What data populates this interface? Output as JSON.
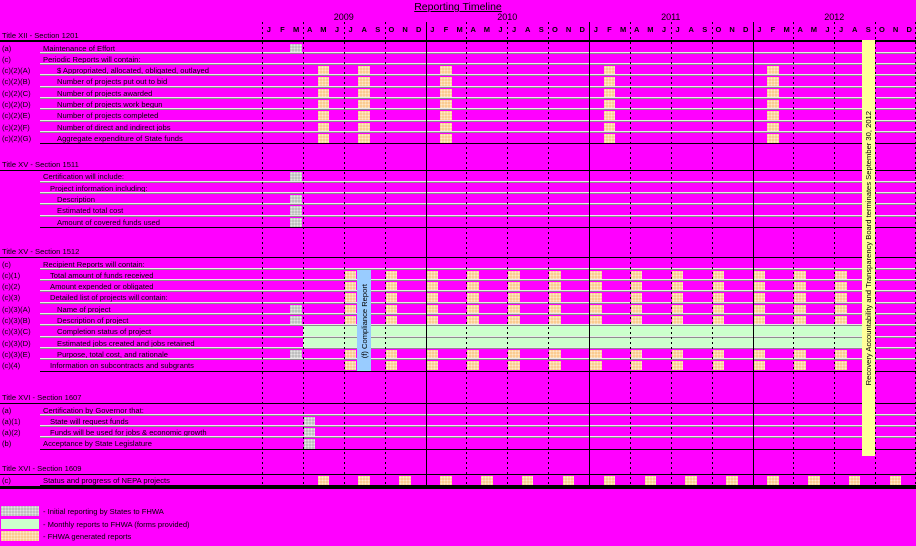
{
  "title": "Reporting Timeline",
  "colors": {
    "background": "#FF00FF",
    "initial": "#BFBFBF",
    "monthly": "#CCFFCC",
    "fhwa": "#FBCB90",
    "termination_bar": "#FFFF99",
    "compliance_bar": "#99CCFF",
    "grid": "#000000"
  },
  "legend": {
    "items": [
      {
        "key": "initial",
        "label": "- Initial reporting by States to FHWA"
      },
      {
        "key": "monthly",
        "label": "- Monthly reports to FHWA (forms provided)"
      },
      {
        "key": "fhwa",
        "label": "- FHWA generated reports"
      }
    ]
  },
  "chart_data": {
    "type": "gantt_timeline",
    "title": "Reporting Timeline",
    "x_axis": {
      "start": "2009-01",
      "end": "2012-12",
      "years": [
        "2009",
        "2010",
        "2011",
        "2012"
      ],
      "month_letters": [
        "J",
        "F",
        "M",
        "A",
        "M",
        "J",
        "J",
        "A",
        "S",
        "O",
        "N",
        "D"
      ]
    },
    "mark_types": {
      "initial": "Initial reporting by States to FHWA",
      "monthly": "Monthly reports to FHWA (forms provided)",
      "fhwa": "FHWA generated reports"
    },
    "sections": [
      {
        "title": "Title XII - Section 1201",
        "rows": [
          {
            "code": "(a)",
            "label": "Maintenance of Effort",
            "indent": 1,
            "initial": [
              "2009-03"
            ]
          },
          {
            "code": "(c)",
            "label": "Periodic Reports will contain:",
            "indent": 1
          },
          {
            "code": "(c)(2)(A)",
            "label": "$ Appropriated, allocated, obligated, outlayed",
            "indent": 3,
            "fhwa": [
              "2009-05",
              "2009-08",
              "2010-02",
              "2011-02",
              "2012-02"
            ]
          },
          {
            "code": "(c)(2)(B)",
            "label": "Number of projects put out to bid",
            "indent": 3,
            "fhwa": [
              "2009-05",
              "2009-08",
              "2010-02",
              "2011-02",
              "2012-02"
            ]
          },
          {
            "code": "(c)(2)(C)",
            "label": "Number of projects awarded",
            "indent": 3,
            "fhwa": [
              "2009-05",
              "2009-08",
              "2010-02",
              "2011-02",
              "2012-02"
            ]
          },
          {
            "code": "(c)(2)(D)",
            "label": "Number of projects work begun",
            "indent": 3,
            "fhwa": [
              "2009-05",
              "2009-08",
              "2010-02",
              "2011-02",
              "2012-02"
            ]
          },
          {
            "code": "(c)(2)(E)",
            "label": "Number of projects completed",
            "indent": 3,
            "fhwa": [
              "2009-05",
              "2009-08",
              "2010-02",
              "2011-02",
              "2012-02"
            ]
          },
          {
            "code": "(c)(2)(F)",
            "label": "Number of direct and indirect jobs",
            "indent": 3,
            "fhwa": [
              "2009-05",
              "2009-08",
              "2010-02",
              "2011-02",
              "2012-02"
            ]
          },
          {
            "code": "(c)(2)(G)",
            "label": "Aggregate expenditure of State funds",
            "indent": 3,
            "fhwa": [
              "2009-05",
              "2009-08",
              "2010-02",
              "2011-02",
              "2012-02"
            ]
          }
        ]
      },
      {
        "title": "Title XV - Section 1511",
        "rows": [
          {
            "code": "",
            "label": "Certification will include:",
            "indent": 1,
            "initial": [
              "2009-03"
            ]
          },
          {
            "code": "",
            "label": "Project information including:",
            "indent": 2
          },
          {
            "code": "",
            "label": "Description",
            "indent": 3,
            "initial": [
              "2009-03"
            ]
          },
          {
            "code": "",
            "label": "Estimated total cost",
            "indent": 3,
            "initial": [
              "2009-03"
            ]
          },
          {
            "code": "",
            "label": "Amount of covered funds used",
            "indent": 3,
            "initial": [
              "2009-03"
            ]
          }
        ]
      },
      {
        "title": "Title XV - Section 1512",
        "rows": [
          {
            "code": "(c)",
            "label": "Recipient Reports will contain:",
            "indent": 1
          },
          {
            "code": "(c)(1)",
            "label": "Total amount of funds received",
            "indent": 2,
            "fhwa": [
              "2009-07",
              "2009-10",
              "2010-01",
              "2010-04",
              "2010-07",
              "2010-10",
              "2011-01",
              "2011-04",
              "2011-07",
              "2011-10",
              "2012-01",
              "2012-04",
              "2012-07"
            ]
          },
          {
            "code": "(c)(2)",
            "label": "Amount expended or obligated",
            "indent": 2,
            "fhwa": [
              "2009-07",
              "2009-10",
              "2010-01",
              "2010-04",
              "2010-07",
              "2010-10",
              "2011-01",
              "2011-04",
              "2011-07",
              "2011-10",
              "2012-01",
              "2012-04",
              "2012-07"
            ]
          },
          {
            "code": "(c)(3)",
            "label": "Detailed list of projects will contain:",
            "indent": 2,
            "fhwa": [
              "2009-07",
              "2009-10",
              "2010-01",
              "2010-04",
              "2010-07",
              "2010-10",
              "2011-01",
              "2011-04",
              "2011-07",
              "2011-10",
              "2012-01",
              "2012-04",
              "2012-07"
            ]
          },
          {
            "code": "(c)(3)(A)",
            "label": "Name of project",
            "indent": 3,
            "initial": [
              "2009-03"
            ],
            "fhwa": [
              "2009-07",
              "2009-10",
              "2010-01",
              "2010-04",
              "2010-07",
              "2010-10",
              "2011-01",
              "2011-04",
              "2011-07",
              "2011-10",
              "2012-01",
              "2012-04",
              "2012-07"
            ]
          },
          {
            "code": "(c)(3)(B)",
            "label": "Description of project",
            "indent": 3,
            "initial": [
              "2009-03"
            ],
            "fhwa": [
              "2009-07",
              "2009-10",
              "2010-01",
              "2010-04",
              "2010-07",
              "2010-10",
              "2011-01",
              "2011-04",
              "2011-07",
              "2011-10",
              "2012-01",
              "2012-04",
              "2012-07"
            ]
          },
          {
            "code": "(c)(3)(C)",
            "label": "Completion status of project",
            "indent": 3,
            "monthly_band": [
              "2009-04",
              "2012-09"
            ]
          },
          {
            "code": "(c)(3)(D)",
            "label": "Estimated jobs created and jobs retained",
            "indent": 3,
            "monthly_band": [
              "2009-04",
              "2012-09"
            ]
          },
          {
            "code": "(c)(3)(E)",
            "label": "Purpose, total cost, and rationale",
            "indent": 3,
            "initial": [
              "2009-03"
            ],
            "fhwa": [
              "2009-07",
              "2009-10",
              "2010-01",
              "2010-04",
              "2010-07",
              "2010-10",
              "2011-01",
              "2011-04",
              "2011-07",
              "2011-10",
              "2012-01",
              "2012-04",
              "2012-07"
            ]
          },
          {
            "code": "(c)(4)",
            "label": "Information on subcontracts and subgrants",
            "indent": 2,
            "fhwa": [
              "2009-07",
              "2009-10",
              "2010-01",
              "2010-04",
              "2010-07",
              "2010-10",
              "2011-01",
              "2011-04",
              "2011-07",
              "2011-10",
              "2012-01",
              "2012-04",
              "2012-07"
            ]
          }
        ]
      },
      {
        "title": "Title XVI - Section 1607",
        "rows": [
          {
            "code": "(a)",
            "label": "Certification by Governor that:",
            "indent": 1
          },
          {
            "code": "(a)(1)",
            "label": "State will request funds",
            "indent": 2,
            "initial": [
              "2009-04"
            ]
          },
          {
            "code": "(a)(2)",
            "label": "Funds will be used for jobs & economic growth",
            "indent": 2,
            "initial": [
              "2009-04"
            ]
          },
          {
            "code": "(b)",
            "label": "Acceptance by State Legislature",
            "indent": 1,
            "initial": [
              "2009-04"
            ]
          }
        ]
      },
      {
        "title": "Title XVI - Section 1609",
        "rows": [
          {
            "code": "(c)",
            "label": "Status and progress of NEPA projects",
            "indent": 1,
            "fhwa": [
              "2009-05",
              "2009-08",
              "2009-11",
              "2010-02",
              "2010-05",
              "2010-08",
              "2010-11",
              "2011-02",
              "2011-05",
              "2011-08",
              "2011-11",
              "2012-02",
              "2012-05",
              "2012-08",
              "2012-11"
            ]
          }
        ]
      }
    ],
    "annotations": [
      {
        "id": "compliance-report",
        "label": "(f) Compliance Report",
        "month": "2009-08"
      },
      {
        "id": "board-termination",
        "label": "Recovery Accountability and Transparency Board terminates September 30, 2012",
        "month": "2012-09"
      }
    ]
  }
}
